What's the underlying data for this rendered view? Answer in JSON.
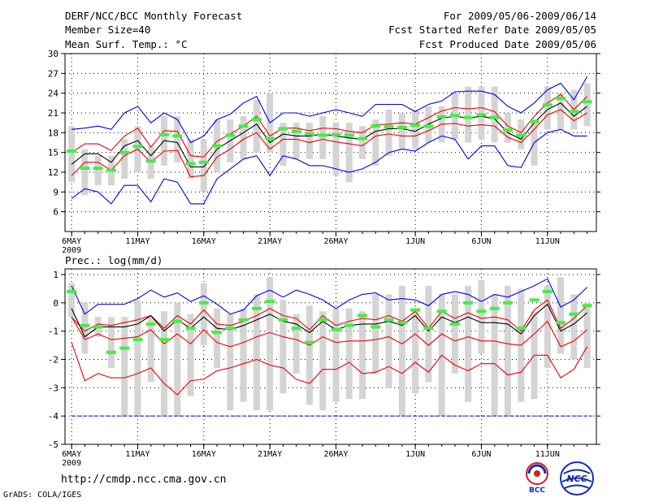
{
  "header": {
    "title": "DERF/NCC/BCC Monthly Forecast",
    "member_size": "Member Size=40",
    "variable": "Mean Surf. Temp.: °C",
    "forecast_period": "For 2009/05/06-2009/06/14",
    "fcst_started": "Fcst Started Refer Date 2009/05/05",
    "fcst_produced": "Fcst Produced Date 2009/05/06"
  },
  "footer": {
    "url": "http://cmdp.ncc.cma.gov.cn",
    "grads": "GrADS: COLA/IGES",
    "logo_bcc": "BCC",
    "logo_ncc": "NCC"
  },
  "colors": {
    "box": "#d4d4d4",
    "green": "#44ee44",
    "blue": "#0000ee",
    "red": "#ee0000",
    "black": "#000000",
    "grid": "#000000"
  },
  "chart_data": [
    {
      "type": "line",
      "title": "Mean Surf. Temp.: °C",
      "xlabel": "",
      "ylabel": "",
      "x_tick_labels": [
        "6MAY",
        "11MAY",
        "16MAY",
        "21MAY",
        "26MAY",
        "1JUN",
        "6JUN",
        "11JUN"
      ],
      "x_tick_days": [
        0,
        5,
        10,
        15,
        20,
        26,
        31,
        36
      ],
      "x_year_label": "2009",
      "xlim": [
        -0.5,
        39.7
      ],
      "ylim": [
        3,
        30
      ],
      "yticks": [
        30,
        27,
        24,
        21,
        18,
        15,
        12,
        9,
        6
      ],
      "grid": true,
      "observed_range": {
        "low": [
          10.5,
          8.5,
          10,
          10,
          11,
          12,
          11,
          13,
          13.5,
          11,
          9,
          12,
          13.5,
          14,
          15,
          15,
          13,
          14,
          14,
          14,
          11.5,
          10.5,
          14,
          13,
          14.5,
          15.5,
          15.5,
          16.5,
          16.5,
          17,
          16.5,
          17,
          16.5,
          16.5,
          15.5,
          13,
          18.5,
          18.5,
          18.5,
          19
        ],
        "high": [
          19,
          15.5,
          14.5,
          14.5,
          17,
          19,
          16,
          20.5,
          20.5,
          17,
          17,
          20,
          20,
          20.5,
          23,
          24,
          19.5,
          19.5,
          19.5,
          20.5,
          19.5,
          19.5,
          19,
          20,
          21.5,
          21,
          21.5,
          22,
          22,
          24,
          25,
          25,
          25,
          21,
          20,
          20,
          25,
          24,
          24.5,
          25.5
        ]
      },
      "observed_value": [
        15.2,
        12.6,
        12.6,
        12.3,
        15,
        15.9,
        13.7,
        17.7,
        17.5,
        13.3,
        13.5,
        16,
        17.6,
        19,
        20,
        17.1,
        18.6,
        18.2,
        17.8,
        17.6,
        17.7,
        17.6,
        17.1,
        19,
        18.9,
        18.8,
        19.1,
        19,
        20.4,
        20.6,
        20.3,
        20.7,
        20.3,
        18.4,
        17.6,
        19.7,
        22.2,
        23.2,
        21.2,
        22.7
      ],
      "series": [
        {
          "name": "ensemble max",
          "color": "blue",
          "values": [
            18.5,
            18.7,
            19,
            18.5,
            21,
            22,
            19.5,
            21,
            20,
            16.5,
            17.5,
            20,
            20.8,
            22.5,
            23.5,
            19.5,
            21,
            21,
            20.5,
            21,
            21.5,
            21,
            20.5,
            22.3,
            22.3,
            22.3,
            21.2,
            22.3,
            22.8,
            24.2,
            24.3,
            24.3,
            23.8,
            22,
            21,
            22.5,
            24.5,
            25.5,
            23,
            26.5
          ]
        },
        {
          "name": "upper",
          "color": "red",
          "values": [
            15,
            16.3,
            16.3,
            15.3,
            17.5,
            18.7,
            15.8,
            18.3,
            18.2,
            14.5,
            14.3,
            16.7,
            17.8,
            19,
            20.5,
            17.5,
            18.7,
            18.7,
            18.3,
            18.7,
            18.6,
            18.2,
            18,
            19.2,
            19.3,
            19.5,
            19.3,
            20.3,
            21.3,
            21.8,
            21.6,
            21.8,
            21.2,
            19,
            18,
            20.5,
            22.5,
            23.8,
            21.5,
            23.5
          ]
        },
        {
          "name": "ensemble mean",
          "color": "black",
          "values": [
            13.2,
            14.8,
            14.8,
            13.5,
            16,
            16.8,
            14.5,
            16.8,
            16.5,
            12.8,
            12.8,
            15.5,
            16.8,
            18,
            19.3,
            16.5,
            17.8,
            17.5,
            17.5,
            17.8,
            17.5,
            17.2,
            17,
            18.2,
            18.6,
            18.6,
            18.2,
            19.3,
            20.2,
            20.5,
            20.2,
            20.5,
            20.1,
            18,
            17,
            19.5,
            21.5,
            22.5,
            20.5,
            22
          ]
        },
        {
          "name": "lower",
          "color": "red",
          "values": [
            11.5,
            13.5,
            13.5,
            12.3,
            14.5,
            15.5,
            13.5,
            15.2,
            15.3,
            11.3,
            11.5,
            14.3,
            15.5,
            17,
            18,
            15.5,
            17,
            17,
            16.5,
            17,
            16.6,
            16.3,
            16,
            17.5,
            17.8,
            17.5,
            17.5,
            18.3,
            19.3,
            19.4,
            19,
            19.2,
            19,
            17.3,
            16.5,
            18.5,
            20.7,
            21.5,
            19.8,
            21
          ]
        },
        {
          "name": "ensemble min",
          "color": "blue",
          "values": [
            8,
            9.5,
            9,
            7.2,
            10,
            10,
            7.5,
            11,
            10.5,
            7.2,
            7.2,
            11,
            12.5,
            14,
            14.5,
            11.5,
            14.5,
            14,
            13,
            13,
            12.5,
            12,
            12.5,
            13.5,
            15,
            15.5,
            15.2,
            16.5,
            17.5,
            17,
            14,
            16,
            16,
            13,
            12.7,
            16.5,
            18,
            18.5,
            17.5,
            17.5
          ]
        }
      ]
    },
    {
      "type": "line",
      "title": "Prec.: log(mm/d)",
      "xlabel": "",
      "ylabel": "",
      "x_tick_labels": [
        "6MAY",
        "11MAY",
        "16MAY",
        "21MAY",
        "26MAY",
        "1JUN",
        "6JUN",
        "11JUN"
      ],
      "x_tick_days": [
        0,
        5,
        10,
        15,
        20,
        26,
        31,
        36
      ],
      "x_year_label": "2009",
      "xlim": [
        -0.5,
        39.7
      ],
      "ylim": [
        -5,
        1.2
      ],
      "yticks": [
        1,
        0,
        -1,
        -2,
        -3,
        -4,
        -5
      ],
      "grid": true,
      "dry_threshold": -4,
      "observed_range": {
        "low": [
          -0.5,
          -1.8,
          -1.2,
          -2.3,
          -4,
          -4,
          -2.8,
          -4,
          -4,
          -3.3,
          -1.5,
          -2.3,
          -3.8,
          -3.5,
          -3.8,
          -3.8,
          -3.2,
          -2.5,
          -3.6,
          -3.8,
          -3.5,
          -3.4,
          -3.4,
          -2.5,
          -3,
          -4,
          -3.2,
          -2.8,
          -4,
          -2.5,
          -3.5,
          -1.8,
          -4,
          -4,
          -3.5,
          -3.4,
          -2.3,
          -1.8,
          -2,
          -2.3
        ],
        "high": [
          0.7,
          0,
          -0.5,
          -0.5,
          -0.5,
          0.1,
          -0.5,
          -0.3,
          0,
          -0.4,
          0.7,
          -0.2,
          -0.4,
          -0.2,
          0.3,
          0.9,
          0.1,
          -0.4,
          -0.1,
          -0.3,
          -0.2,
          -0.2,
          -0.3,
          0.3,
          0.3,
          0.6,
          -0.2,
          0.6,
          0.3,
          0.3,
          0.6,
          0.8,
          0.3,
          0.6,
          0.5,
          -0.3,
          0.6,
          0.9,
          0.3,
          0
        ]
      },
      "observed_value": [
        0.4,
        -0.8,
        -0.85,
        -1.75,
        -1.6,
        -1.3,
        -0.75,
        -1.3,
        -0.65,
        -0.9,
        0,
        -1.05,
        -0.9,
        -0.6,
        -0.2,
        0.05,
        -0.6,
        -0.9,
        -1.4,
        -0.6,
        -0.95,
        -0.8,
        -0.45,
        -0.85,
        -0.6,
        -0.7,
        -0.25,
        -0.9,
        -0.3,
        -0.75,
        0,
        -0.3,
        -0.2,
        0,
        -0.9,
        0.1,
        0.4,
        -0.7,
        -0.4,
        -0.1
      ],
      "series": [
        {
          "name": "ensemble max",
          "color": "blue",
          "values": [
            0.6,
            -0.4,
            -0.05,
            -0.05,
            -0.05,
            0.15,
            0.45,
            0.2,
            0.35,
            0.05,
            0.25,
            -0.05,
            -0.4,
            -0.25,
            0.25,
            0.45,
            0.2,
            0.45,
            0.3,
            0.1,
            -0.2,
            0.1,
            0.3,
            0.35,
            0.1,
            0.15,
            0.1,
            -0.1,
            0.3,
            0.4,
            0.3,
            0.05,
            0.3,
            0.2,
            0.4,
            0.6,
            0.85,
            -0.15,
            0.1,
            0.55
          ]
        },
        {
          "name": "upper",
          "color": "red",
          "values": [
            -0.5,
            -1,
            -0.75,
            -0.8,
            -0.7,
            -0.6,
            -0.45,
            -0.9,
            -0.45,
            -0.75,
            -0.25,
            -0.75,
            -0.8,
            -0.65,
            -0.45,
            -0.2,
            -0.45,
            -0.55,
            -0.95,
            -0.45,
            -0.8,
            -0.65,
            -0.55,
            -0.6,
            -0.45,
            -0.65,
            -0.3,
            -0.9,
            -0.3,
            -0.55,
            -0.35,
            -0.55,
            -0.5,
            -0.6,
            -1,
            -0.25,
            0.1,
            -0.9,
            -0.55,
            -0.1
          ]
        },
        {
          "name": "ensemble mean",
          "color": "black",
          "values": [
            -0.2,
            -1.2,
            -0.85,
            -0.85,
            -0.85,
            -0.75,
            -0.45,
            -1,
            -0.6,
            -0.9,
            -0.5,
            -0.9,
            -0.95,
            -0.8,
            -0.6,
            -0.4,
            -0.65,
            -0.75,
            -1.05,
            -0.65,
            -0.95,
            -0.8,
            -0.75,
            -0.75,
            -0.65,
            -0.8,
            -0.45,
            -1,
            -0.5,
            -0.7,
            -0.5,
            -0.7,
            -0.7,
            -0.75,
            -1.1,
            -0.45,
            -0.05,
            -1,
            -0.75,
            -0.35
          ]
        },
        {
          "name": "lower",
          "color": "red",
          "values": [
            -0.5,
            -1.3,
            -1.1,
            -1.3,
            -1.25,
            -1.2,
            -0.95,
            -1.45,
            -1.1,
            -1.45,
            -0.95,
            -1.4,
            -1.55,
            -1.4,
            -1.2,
            -1.05,
            -1.2,
            -1.3,
            -1.5,
            -1.2,
            -1.4,
            -1.35,
            -1.35,
            -1.3,
            -1.2,
            -1.45,
            -1.1,
            -1.5,
            -1.1,
            -1.35,
            -1.2,
            -1.35,
            -1.35,
            -1.45,
            -1.5,
            -1.1,
            -0.65,
            -1.55,
            -1.35,
            -0.95
          ]
        },
        {
          "name": "ensemble min",
          "color": "red",
          "values": [
            -1.4,
            -2.75,
            -2.5,
            -2.65,
            -2.65,
            -2.5,
            -2.3,
            -2.85,
            -3.25,
            -2.75,
            -2.7,
            -2.4,
            -2.3,
            -2.15,
            -2,
            -2.2,
            -2.3,
            -2.7,
            -2.85,
            -2.35,
            -2.35,
            -2.1,
            -2.5,
            -2.45,
            -2.25,
            -2.5,
            -2.1,
            -2.45,
            -1.85,
            -2.2,
            -2.4,
            -2.15,
            -2.15,
            -2.55,
            -2.45,
            -1.85,
            -1.85,
            -2.65,
            -2.35,
            -1.55
          ]
        }
      ]
    }
  ]
}
